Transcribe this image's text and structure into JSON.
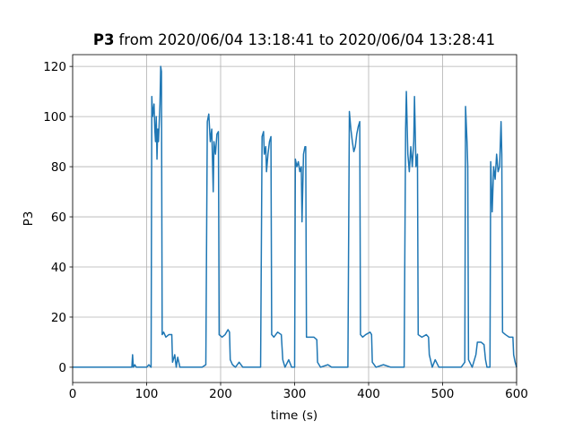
{
  "chart_data": {
    "type": "line",
    "title": {
      "bold": "P3",
      "rest": "from 2020/06/04 13:18:41 to 2020/06/04 13:28:41"
    },
    "x_label": "time (s)",
    "y_label": "P3",
    "xlim": [
      0,
      600
    ],
    "ylim": [
      -6.1,
      124.7
    ],
    "xticks": [
      0,
      100,
      200,
      300,
      400,
      500,
      600
    ],
    "yticks": [
      0,
      20,
      40,
      60,
      80,
      100,
      120
    ],
    "grid": true,
    "x": [
      0,
      80,
      81,
      82,
      84,
      86,
      100,
      103,
      106,
      107,
      108,
      110,
      111,
      112,
      113,
      114,
      115,
      116,
      118,
      119,
      120,
      121,
      123,
      126,
      130,
      134,
      135,
      138,
      140,
      142,
      145,
      175,
      180,
      182,
      184,
      186,
      188,
      190,
      191,
      193,
      195,
      197,
      198,
      202,
      206,
      210,
      212,
      213,
      216,
      220,
      225,
      230,
      254,
      256,
      258,
      259,
      261,
      262,
      264,
      266,
      268,
      269,
      272,
      277,
      282,
      284,
      287,
      292,
      296,
      300,
      301,
      303,
      305,
      307,
      309,
      310,
      312,
      314,
      315,
      316,
      320,
      326,
      330,
      331,
      335,
      345,
      350,
      372,
      374,
      376,
      378,
      380,
      382,
      384,
      386,
      388,
      389,
      392,
      396,
      402,
      404,
      405,
      410,
      420,
      430,
      448,
      450,
      451,
      453,
      455,
      457,
      459,
      461,
      462,
      464,
      466,
      467,
      472,
      478,
      481,
      482,
      486,
      490,
      495,
      525,
      530,
      531,
      533,
      534,
      535,
      540,
      545,
      547,
      552,
      556,
      558,
      560,
      564,
      565,
      567,
      569,
      571,
      573,
      575,
      577,
      579,
      580,
      581,
      585,
      590,
      595,
      596,
      598,
      600
    ],
    "series": [
      {
        "name": "P3",
        "color": "#1f77b4",
        "values": [
          0,
          0,
          5,
          0,
          1,
          0,
          0,
          1,
          0,
          108,
          100,
          105,
          95,
          90,
          100,
          83,
          95,
          90,
          105,
          120,
          118,
          13,
          14,
          12,
          13,
          13,
          2,
          5,
          0,
          4,
          0,
          0,
          1,
          98,
          101,
          90,
          95,
          70,
          90,
          85,
          93,
          94,
          13,
          12,
          13,
          15,
          14,
          3,
          1,
          0,
          2,
          0,
          0,
          92,
          94,
          85,
          88,
          78,
          85,
          90,
          92,
          13,
          12,
          14,
          13,
          3,
          0,
          3,
          0,
          0,
          83,
          80,
          82,
          78,
          80,
          58,
          85,
          88,
          88,
          12,
          12,
          12,
          11,
          2,
          0,
          1,
          0,
          0,
          102,
          95,
          90,
          86,
          88,
          93,
          96,
          98,
          13,
          12,
          13,
          14,
          13,
          2,
          0,
          1,
          0,
          0,
          95,
          110,
          85,
          78,
          88,
          80,
          90,
          108,
          80,
          85,
          13,
          12,
          13,
          12,
          5,
          0,
          3,
          0,
          0,
          2,
          104,
          90,
          80,
          3,
          0,
          5,
          10,
          10,
          9,
          3,
          0,
          0,
          82,
          62,
          80,
          75,
          85,
          78,
          80,
          98,
          85,
          14,
          13,
          12,
          12,
          5,
          2,
          0
        ]
      }
    ]
  }
}
